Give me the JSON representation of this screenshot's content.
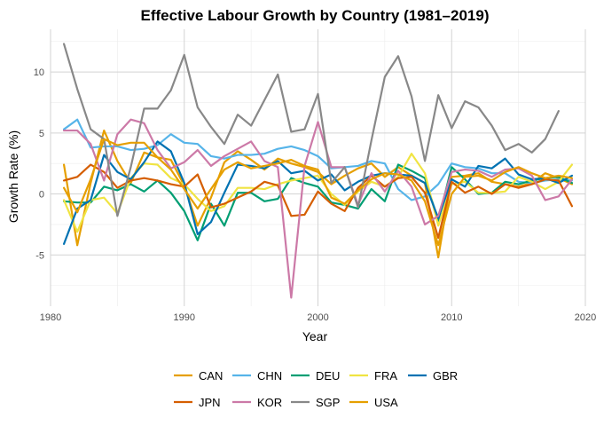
{
  "chart_data": {
    "type": "line",
    "title": "Effective Labour Growth by Country (1981–2019)",
    "xlabel": "Year",
    "ylabel": "Growth Rate (%)",
    "xlim": [
      1980,
      2020
    ],
    "ylim": [
      -9.2,
      13.5
    ],
    "x_ticks": [
      1980,
      1990,
      2000,
      2010,
      2020
    ],
    "y_ticks": [
      -5,
      0,
      5,
      10
    ],
    "grid": true,
    "legend_position": "bottom",
    "years": [
      1981,
      1982,
      1983,
      1984,
      1985,
      1986,
      1987,
      1988,
      1989,
      1990,
      1991,
      1992,
      1993,
      1994,
      1995,
      1996,
      1997,
      1998,
      1999,
      2000,
      2001,
      2002,
      2003,
      2004,
      2005,
      2006,
      2007,
      2008,
      2009,
      2010,
      2011,
      2012,
      2013,
      2014,
      2015,
      2016,
      2017,
      2018,
      2019
    ],
    "series": [
      {
        "name": "CAN",
        "color": "#E69F00",
        "values": [
          2.4,
          -4.2,
          0.9,
          5.2,
          2.7,
          0.9,
          3.4,
          3.0,
          2.8,
          0.7,
          -2.6,
          -0.3,
          2.6,
          3.5,
          2.8,
          2.0,
          2.9,
          2.5,
          2.2,
          1.8,
          0.8,
          1.5,
          2.1,
          2.5,
          1.4,
          2.2,
          1.5,
          0.9,
          -5.2,
          1.4,
          1.5,
          1.7,
          1.0,
          0.8,
          0.6,
          0.9,
          1.7,
          1.3,
          0.8
        ]
      },
      {
        "name": "CHN",
        "color": "#56B4E9",
        "values": [
          5.3,
          6.1,
          3.8,
          3.9,
          3.9,
          3.6,
          3.7,
          4.0,
          4.9,
          4.2,
          4.1,
          3.1,
          2.9,
          3.2,
          3.2,
          3.3,
          3.7,
          3.9,
          3.6,
          3.1,
          2.1,
          2.2,
          2.3,
          2.7,
          2.5,
          0.4,
          -0.5,
          -0.2,
          0.8,
          2.5,
          2.2,
          2.1,
          1.7,
          1.7,
          1.0,
          0.9,
          1.1,
          1.2,
          1.1
        ]
      },
      {
        "name": "DEU",
        "color": "#009E73",
        "values": [
          -0.6,
          -0.7,
          -0.7,
          0.6,
          0.3,
          0.8,
          0.2,
          1.1,
          0.1,
          -1.4,
          -3.8,
          -0.8,
          -2.6,
          0.1,
          0.1,
          -0.6,
          -0.4,
          1.3,
          0.9,
          0.6,
          -0.7,
          -0.9,
          -1.2,
          0.4,
          -0.6,
          2.4,
          1.9,
          1.3,
          -2.2,
          2.2,
          1.2,
          0.0,
          0.1,
          1.0,
          0.8,
          1.1,
          1.3,
          1.4,
          0.9
        ]
      },
      {
        "name": "FRA",
        "color": "#F0E442",
        "values": [
          -0.5,
          -3.1,
          -0.5,
          -0.3,
          -1.6,
          1.3,
          2.5,
          2.4,
          1.3,
          0.8,
          -0.4,
          -1.4,
          -1.0,
          0.5,
          0.5,
          0.4,
          0.8,
          1.1,
          1.3,
          1.5,
          0.0,
          -0.9,
          0.2,
          1.0,
          0.6,
          1.4,
          3.3,
          1.7,
          -2.6,
          0.8,
          1.0,
          0.1,
          0.1,
          0.2,
          1.4,
          1.0,
          0.4,
          1.0,
          2.4
        ]
      },
      {
        "name": "GBR",
        "color": "#0072B2",
        "values": [
          -4.1,
          -1.2,
          -0.5,
          3.2,
          1.8,
          1.2,
          2.6,
          4.3,
          3.5,
          0.9,
          -3.3,
          -2.3,
          0.1,
          2.4,
          2.3,
          2.1,
          2.7,
          1.7,
          1.9,
          1.1,
          1.6,
          0.3,
          1.0,
          1.5,
          1.7,
          1.6,
          1.5,
          0.9,
          -2.0,
          1.2,
          0.6,
          2.3,
          2.1,
          2.9,
          1.6,
          1.2,
          1.3,
          0.9,
          1.5
        ]
      },
      {
        "name": "JPN",
        "color": "#D55E00",
        "values": [
          1.1,
          1.4,
          2.4,
          1.8,
          0.5,
          1.1,
          1.3,
          1.1,
          0.8,
          0.6,
          1.6,
          -1.1,
          -0.8,
          -0.3,
          0.2,
          1.0,
          0.7,
          -1.8,
          -1.7,
          0.2,
          -0.8,
          -1.4,
          0.5,
          1.5,
          0.6,
          1.3,
          1.4,
          0.1,
          -3.6,
          1.0,
          0.1,
          0.6,
          0.0,
          0.8,
          0.5,
          0.8,
          1.2,
          1.1,
          -1.0
        ]
      },
      {
        "name": "KOR",
        "color": "#CC79A7",
        "values": [
          5.2,
          5.2,
          4.1,
          1.1,
          4.9,
          6.1,
          5.8,
          3.6,
          2.1,
          2.6,
          3.6,
          2.3,
          3.1,
          3.7,
          4.3,
          2.7,
          2.2,
          -8.5,
          2.3,
          5.9,
          2.2,
          2.2,
          -0.9,
          1.7,
          0.2,
          1.9,
          0.6,
          -2.5,
          -1.8,
          1.8,
          2.0,
          1.9,
          1.4,
          2.0,
          2.1,
          1.5,
          -0.5,
          -0.2,
          1.2
        ]
      },
      {
        "name": "SGP",
        "color": "#888888",
        "values": [
          12.3,
          8.6,
          5.3,
          4.5,
          -1.8,
          2.2,
          7.0,
          7.0,
          8.5,
          11.4,
          7.1,
          5.5,
          4.1,
          6.5,
          5.6,
          7.7,
          9.8,
          5.1,
          5.3,
          8.2,
          0.9,
          2.2,
          -1.1,
          4.4,
          9.6,
          11.3,
          8.0,
          2.7,
          8.1,
          5.4,
          7.6,
          7.1,
          5.6,
          3.6,
          4.1,
          3.4,
          4.5,
          6.8,
          null
        ]
      },
      {
        "name": "USA",
        "color": "#E69F00",
        "values": [
          0.5,
          -1.5,
          1.2,
          4.5,
          4.0,
          4.2,
          4.2,
          3.0,
          2.0,
          0.4,
          -1.2,
          0.4,
          2.0,
          2.6,
          2.1,
          2.3,
          2.5,
          2.8,
          2.3,
          2.0,
          -0.3,
          -0.8,
          0.3,
          1.2,
          1.7,
          1.6,
          1.1,
          -0.6,
          -4.2,
          0.0,
          1.4,
          1.5,
          1.1,
          1.8,
          2.2,
          1.7,
          1.3,
          1.5,
          1.3
        ]
      }
    ]
  }
}
